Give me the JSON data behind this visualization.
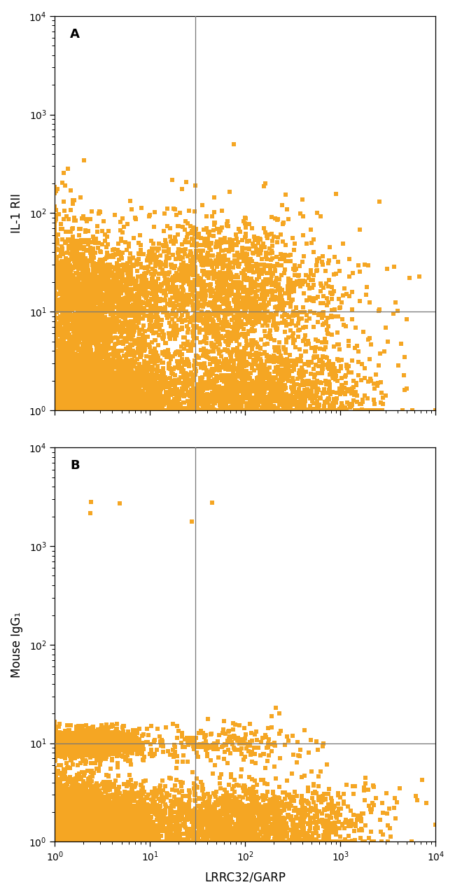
{
  "panel_A": {
    "label": "A",
    "ylabel": "IL-1 RII",
    "vline": 30,
    "hline": 10,
    "dot_color": "#F5A623",
    "dot_size": 14,
    "seed": 42,
    "clusters": [
      {
        "x_log_mean": 0.15,
        "y_log_mean": 0.15,
        "x_log_std": 0.25,
        "y_log_std": 0.25,
        "n": 4000
      },
      {
        "x_log_mean": 0.6,
        "y_log_mean": 0.15,
        "x_log_std": 0.3,
        "y_log_std": 0.22,
        "n": 2000
      },
      {
        "x_log_mean": 0.3,
        "y_log_mean": 1.05,
        "x_log_std": 0.35,
        "y_log_std": 0.28,
        "n": 1200
      },
      {
        "x_log_mean": 0.6,
        "y_log_mean": 1.1,
        "x_log_std": 0.35,
        "y_log_std": 0.32,
        "n": 800
      },
      {
        "x_log_mean": 1.7,
        "y_log_mean": 1.2,
        "x_log_std": 0.45,
        "y_log_std": 0.38,
        "n": 1500
      },
      {
        "x_log_mean": 1.8,
        "y_log_mean": 0.15,
        "x_log_std": 0.45,
        "y_log_std": 0.22,
        "n": 1200
      },
      {
        "x_log_mean": 2.5,
        "y_log_mean": 0.15,
        "x_log_std": 0.5,
        "y_log_std": 0.22,
        "n": 600
      },
      {
        "x_log_mean": 2.5,
        "y_log_mean": 1.0,
        "x_log_std": 0.5,
        "y_log_std": 0.38,
        "n": 400
      },
      {
        "x_log_mean": 0.1,
        "y_log_mean": 1.5,
        "x_log_std": 0.2,
        "y_log_std": 0.4,
        "n": 300
      }
    ]
  },
  "panel_B": {
    "label": "B",
    "ylabel": "Mouse IgG₁",
    "vline": 30,
    "hline": 10,
    "dot_color": "#F5A623",
    "dot_size": 14,
    "seed": 77,
    "clusters": [
      {
        "x_log_mean": 0.15,
        "y_log_mean": 0.15,
        "x_log_std": 0.25,
        "y_log_std": 0.22,
        "n": 4500
      },
      {
        "x_log_mean": 0.6,
        "y_log_mean": 0.15,
        "x_log_std": 0.3,
        "y_log_std": 0.18,
        "n": 2000
      },
      {
        "x_log_mean": 0.35,
        "y_log_mean": 1.0,
        "x_log_std": 0.3,
        "y_log_std": 0.08,
        "n": 1200
      },
      {
        "x_log_mean": 1.8,
        "y_log_mean": 0.15,
        "x_log_std": 0.5,
        "y_log_std": 0.22,
        "n": 1500
      },
      {
        "x_log_mean": 2.5,
        "y_log_mean": 0.15,
        "x_log_std": 0.5,
        "y_log_std": 0.22,
        "n": 600
      },
      {
        "x_log_mean": 1.8,
        "y_log_mean": 1.0,
        "x_log_std": 0.4,
        "y_log_std": 0.1,
        "n": 200
      },
      {
        "x_log_mean": 0.5,
        "y_log_mean": 3.3,
        "x_log_std": 0.3,
        "y_log_std": 0.15,
        "n": 3
      },
      {
        "x_log_mean": 1.55,
        "y_log_mean": 3.35,
        "x_log_std": 0.1,
        "y_log_std": 0.1,
        "n": 2
      }
    ]
  },
  "xlabel": "LRRC32/GARP",
  "xlim_log": [
    1,
    10000
  ],
  "ylim_log": [
    1,
    10000
  ],
  "background_color": "#ffffff",
  "line_color": "#777777",
  "label_fontsize": 12,
  "tick_fontsize": 10,
  "panel_label_fontsize": 13
}
